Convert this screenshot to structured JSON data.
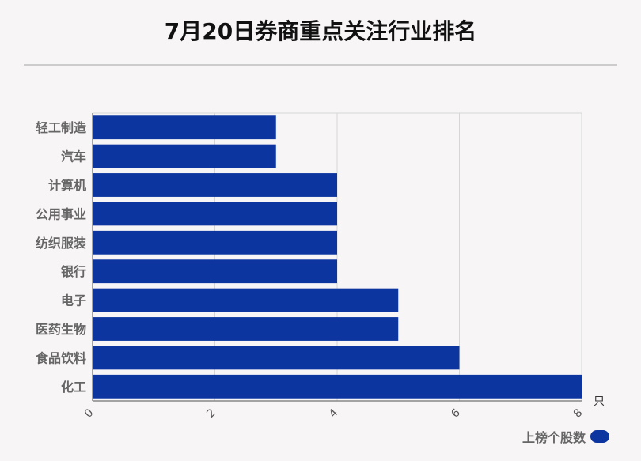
{
  "title": "7月20日券商重点关注行业排名",
  "legend": {
    "label": "上榜个股数",
    "color": "#0d35a0"
  },
  "x_unit": "只",
  "chart_data": {
    "type": "bar",
    "orientation": "horizontal",
    "title": "7月20日券商重点关注行业排名",
    "categories": [
      "轻工制造",
      "汽车",
      "计算机",
      "公用事业",
      "纺织服装",
      "银行",
      "电子",
      "医药生物",
      "食品饮料",
      "化工"
    ],
    "series": [
      {
        "name": "上榜个股数",
        "values": [
          3,
          3,
          4,
          4,
          4,
          4,
          5,
          5,
          6,
          8
        ],
        "color": "#0d35a0"
      }
    ],
    "xlim": [
      0,
      8
    ],
    "x_ticks": [
      "0",
      "2",
      "4",
      "6",
      "8"
    ],
    "x_unit": "只",
    "grid": true,
    "legend_position": "bottom-right"
  }
}
